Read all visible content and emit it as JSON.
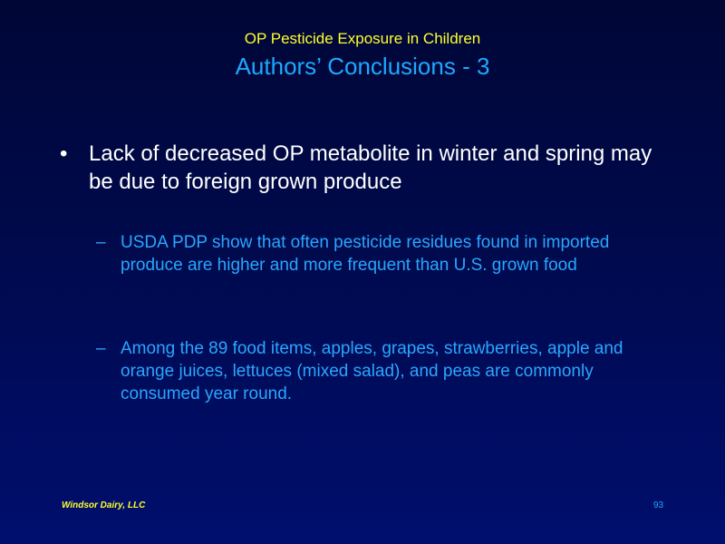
{
  "slide": {
    "subtitle": "OP Pesticide Exposure in Children",
    "title": "Authors’ Conclusions - 3",
    "bullet": {
      "marker": "•",
      "text": "Lack of decreased OP metabolite in winter and spring may be due to foreign grown produce"
    },
    "sub_bullets": [
      {
        "marker": "–",
        "text": "USDA PDP show that often pesticide residues found in imported produce are higher and more frequent than U.S. grown food"
      },
      {
        "marker": "–",
        "text": "Among the 89 food items, apples, grapes, strawberries, apple and orange juices, lettuces (mixed salad), and peas are commonly consumed year round."
      }
    ],
    "footer": {
      "left": "Windsor Dairy, LLC",
      "page_number": "93"
    }
  },
  "colors": {
    "background_top": "#000636",
    "background_bottom": "#000e6e",
    "subtitle": "#ffff2e",
    "title": "#1ea8ff",
    "bullet_text": "#ffffff",
    "sub_bullet_text": "#2aa6ff"
  }
}
